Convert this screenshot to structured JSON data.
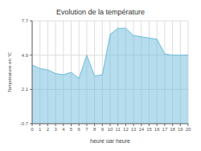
{
  "chart_data": {
    "type": "area",
    "title": "Evolution de la température",
    "xlabel": "heure par heure",
    "ylabel": "Température en °C",
    "x": [
      0,
      1,
      2,
      3,
      4,
      5,
      6,
      7,
      8,
      9,
      10,
      11,
      12,
      13,
      14,
      15,
      16,
      17,
      18,
      19,
      20
    ],
    "values": [
      4.1,
      3.8,
      3.7,
      3.4,
      3.3,
      3.5,
      3.0,
      4.9,
      3.2,
      3.3,
      6.6,
      7.1,
      7.1,
      6.5,
      6.4,
      6.3,
      6.2,
      5.0,
      4.9,
      4.9,
      4.9
    ],
    "color": "#6bbcdc",
    "xlim": [
      0,
      20
    ],
    "xticks": [
      0,
      1,
      2,
      3,
      4,
      5,
      6,
      7,
      8,
      9,
      10,
      11,
      12,
      13,
      14,
      15,
      16,
      17,
      18,
      19,
      20
    ],
    "ylim": [
      -0.7,
      7.7
    ],
    "yticks": [
      -0.7,
      2.1,
      4.9,
      7.7
    ],
    "grid": true
  }
}
